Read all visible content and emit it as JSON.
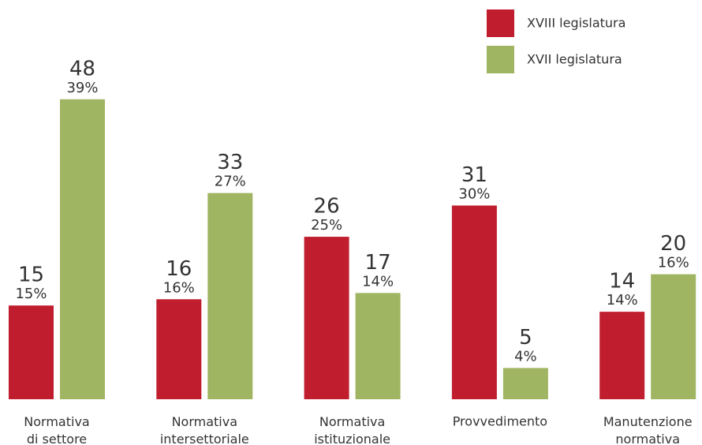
{
  "chart_data": {
    "type": "bar",
    "categories": [
      "Normativa di settore",
      "Normativa intersettoriale",
      "Normativa istituzionale",
      "Provvedimento",
      "Manutenzione normativa"
    ],
    "series": [
      {
        "name": "XVIII legislatura",
        "color": "#c01e2e",
        "values": [
          15,
          16,
          26,
          31,
          14
        ],
        "percent_labels": [
          "15%",
          "16%",
          "25%",
          "30%",
          "14%"
        ]
      },
      {
        "name": "XVII legislatura",
        "color": "#9fb562",
        "values": [
          48,
          33,
          17,
          5,
          20
        ],
        "percent_labels": [
          "39%",
          "27%",
          "14%",
          "4%",
          "16%"
        ]
      }
    ],
    "legend": "top-right"
  }
}
